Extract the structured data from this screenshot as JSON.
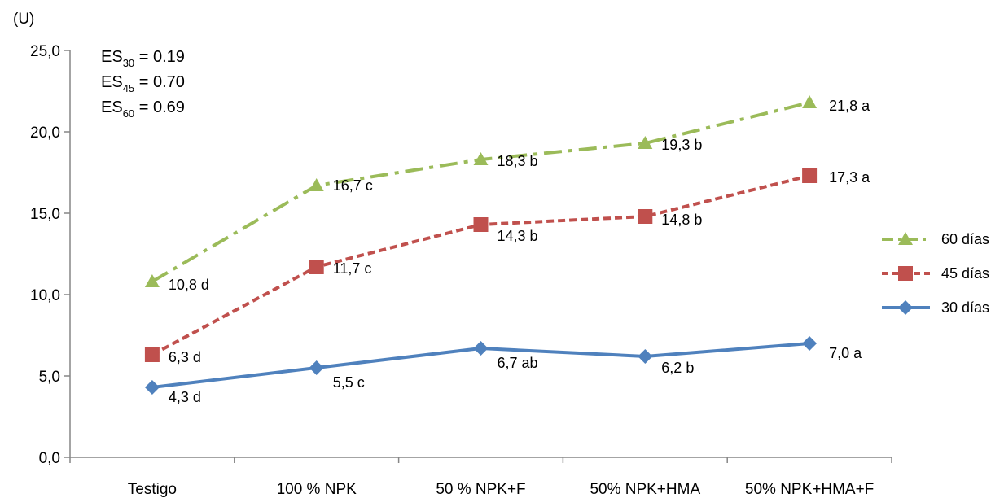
{
  "chart_data": {
    "type": "line",
    "ylabel": "(U)",
    "ylim": [
      0,
      25
    ],
    "yticks": [
      "0,0",
      "5,0",
      "10,0",
      "15,0",
      "20,0",
      "25,0"
    ],
    "categories": [
      "Testigo",
      "100 % NPK",
      "50 % NPK+F",
      "50% NPK+HMA",
      "50% NPK+HMA+F"
    ],
    "series": [
      {
        "name": "60 días",
        "values": [
          10.8,
          16.7,
          18.3,
          19.3,
          21.8
        ],
        "labels": [
          "10,8 d",
          "16,7 c",
          "18,3 b",
          "19,3 b",
          "21,8 a"
        ],
        "color": "#9bbb59",
        "marker": "triangle",
        "dash": "dashdot"
      },
      {
        "name": "45 días",
        "values": [
          6.3,
          11.7,
          14.3,
          14.8,
          17.3
        ],
        "labels": [
          "6,3 d",
          "11,7 c",
          "14,3 b",
          "14,8 b",
          "17,3 a"
        ],
        "color": "#c0504d",
        "marker": "square",
        "dash": "dash"
      },
      {
        "name": "30 días",
        "values": [
          4.3,
          5.5,
          6.7,
          6.2,
          7.0
        ],
        "labels": [
          "4,3 d",
          "5,5 c",
          "6,7 ab",
          "6,2 b",
          "7,0 a"
        ],
        "color": "#4f81bd",
        "marker": "diamond",
        "dash": "solid"
      }
    ],
    "annotations": [
      {
        "base": "ES",
        "sub": "30",
        "value": "= 0.19"
      },
      {
        "base": "ES",
        "sub": "45",
        "value": "= 0.70"
      },
      {
        "base": "ES",
        "sub": "60",
        "value": "= 0.69"
      }
    ],
    "legend_order": [
      "60 días",
      "45 días",
      "30 días"
    ],
    "legend_position": "right",
    "grid": false
  }
}
